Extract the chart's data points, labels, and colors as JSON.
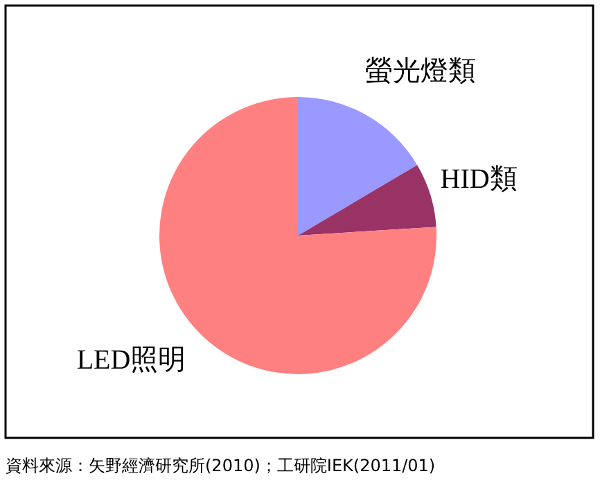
{
  "chart_data": {
    "type": "pie",
    "categories": [
      "螢光燈類",
      "HID類",
      "LED照明"
    ],
    "values": [
      16.5,
      7.5,
      76
    ],
    "colors": [
      "#9999ff",
      "#993366",
      "#ff8080"
    ],
    "annotations": [
      "資料來源：矢野經濟研究所(2010)；工研院IEK(2011/01)"
    ]
  }
}
